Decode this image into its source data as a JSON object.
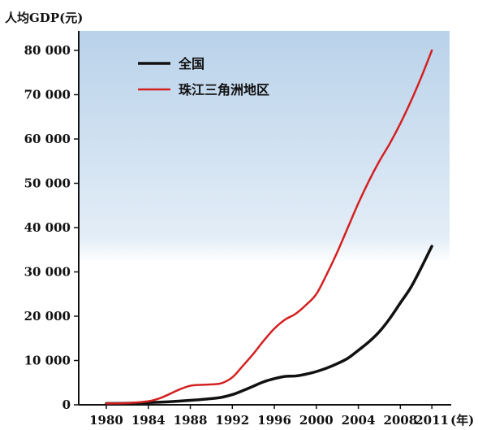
{
  "chart_data": {
    "type": "line",
    "ylabel": "人均GDP(元)",
    "xunit": "(年)",
    "ylim": [
      0,
      85000
    ],
    "xlim": [
      1976,
      2013
    ],
    "y_ticks": [
      {
        "value": 0,
        "label": "0"
      },
      {
        "value": 10000,
        "label": "10 000"
      },
      {
        "value": 20000,
        "label": "20 000"
      },
      {
        "value": 30000,
        "label": "30 000"
      },
      {
        "value": 40000,
        "label": "40 000"
      },
      {
        "value": 50000,
        "label": "50 000"
      },
      {
        "value": 60000,
        "label": "60 000"
      },
      {
        "value": 70000,
        "label": "70 000"
      },
      {
        "value": 80000,
        "label": "80 000"
      }
    ],
    "x_ticks": [
      {
        "value": 1980,
        "label": "1980"
      },
      {
        "value": 1984,
        "label": "1984"
      },
      {
        "value": 1988,
        "label": "1988"
      },
      {
        "value": 1992,
        "label": "1992"
      },
      {
        "value": 1996,
        "label": "1996"
      },
      {
        "value": 2000,
        "label": "2000"
      },
      {
        "value": 2004,
        "label": "2004"
      },
      {
        "value": 2008,
        "label": "2008"
      },
      {
        "value": 2011,
        "label": "2011"
      }
    ],
    "legend_position": "top-left",
    "series": [
      {
        "name": "全国",
        "color": "#111111",
        "x": [
          1980,
          1982,
          1984,
          1986,
          1988,
          1990,
          1991,
          1992,
          1993,
          1994,
          1995,
          1996,
          1997,
          1998,
          1999,
          2000,
          2001,
          2002,
          2003,
          2004,
          2005,
          2006,
          2007,
          2008,
          2009,
          2010,
          2011
        ],
        "y": [
          300,
          350,
          500,
          700,
          1000,
          1400,
          1700,
          2300,
          3200,
          4200,
          5200,
          5900,
          6400,
          6500,
          6900,
          7500,
          8300,
          9300,
          10500,
          12300,
          14200,
          16500,
          19500,
          23000,
          26500,
          31000,
          35800
        ]
      },
      {
        "name": "珠江三角洲地区",
        "color": "#d42020",
        "x": [
          1980,
          1982,
          1984,
          1985,
          1986,
          1987,
          1988,
          1989,
          1990,
          1991,
          1992,
          1993,
          1994,
          1995,
          1996,
          1997,
          1998,
          1999,
          2000,
          2001,
          2002,
          2003,
          2004,
          2005,
          2006,
          2007,
          2008,
          2009,
          2010,
          2011
        ],
        "y": [
          300,
          400,
          800,
          1400,
          2400,
          3500,
          4300,
          4500,
          4600,
          4900,
          6200,
          8800,
          11500,
          14500,
          17200,
          19200,
          20500,
          22500,
          25000,
          29500,
          34500,
          40000,
          45500,
          50500,
          55000,
          59000,
          63500,
          68500,
          74000,
          80000
        ]
      }
    ]
  }
}
